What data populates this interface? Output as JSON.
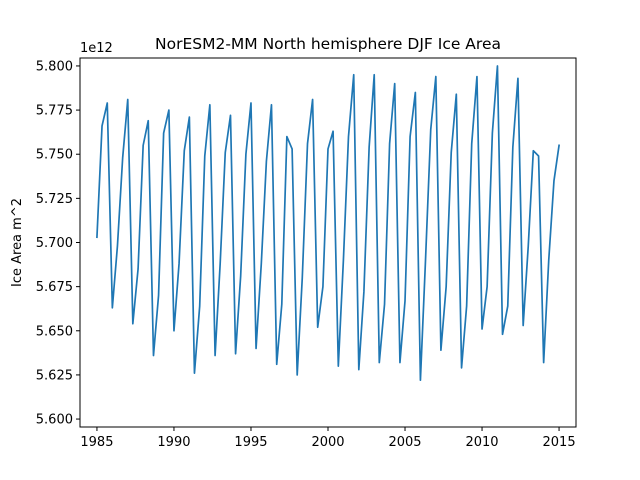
{
  "chart_data": {
    "type": "line",
    "title": "NorESM2-MM North hemisphere DJF Ice Area",
    "xlabel": "",
    "ylabel": "Ice Area m^2",
    "offset_label": "1e12",
    "xlim": [
      1983.9,
      2016.1
    ],
    "ylim": [
      5.5955,
      5.8045
    ],
    "xticks": [
      1985,
      1990,
      1995,
      2000,
      2005,
      2010,
      2015
    ],
    "xtick_labels": [
      "1985",
      "1990",
      "1995",
      "2000",
      "2005",
      "2010",
      "2015"
    ],
    "yticks": [
      5.6,
      5.625,
      5.65,
      5.675,
      5.7,
      5.725,
      5.75,
      5.775,
      5.8
    ],
    "ytick_labels": [
      "5.600",
      "5.625",
      "5.650",
      "5.675",
      "5.700",
      "5.725",
      "5.750",
      "5.775",
      "5.800"
    ],
    "grid": false,
    "series": [
      {
        "color": "#1f77b4",
        "x": [
          1985.0,
          1985.33,
          1985.67,
          1986.0,
          1986.33,
          1986.67,
          1987.0,
          1987.33,
          1987.67,
          1988.0,
          1988.33,
          1988.67,
          1989.0,
          1989.33,
          1989.67,
          1990.0,
          1990.33,
          1990.67,
          1991.0,
          1991.33,
          1991.67,
          1992.0,
          1992.33,
          1992.67,
          1993.0,
          1993.33,
          1993.67,
          1994.0,
          1994.33,
          1994.67,
          1995.0,
          1995.33,
          1995.67,
          1996.0,
          1996.33,
          1996.67,
          1997.0,
          1997.33,
          1997.67,
          1998.0,
          1998.33,
          1998.67,
          1999.0,
          1999.33,
          1999.67,
          2000.0,
          2000.33,
          2000.67,
          2001.0,
          2001.33,
          2001.67,
          2002.0,
          2002.33,
          2002.67,
          2003.0,
          2003.33,
          2003.67,
          2004.0,
          2004.33,
          2004.67,
          2005.0,
          2005.33,
          2005.67,
          2006.0,
          2006.33,
          2006.67,
          2007.0,
          2007.33,
          2007.67,
          2008.0,
          2008.33,
          2008.67,
          2009.0,
          2009.33,
          2009.67,
          2010.0,
          2010.33,
          2010.67,
          2011.0,
          2011.33,
          2011.67,
          2012.0,
          2012.33,
          2012.67,
          2013.0,
          2013.33,
          2013.67,
          2014.0,
          2014.33,
          2014.67,
          2015.0
        ],
        "y": [
          5.703,
          5.766,
          5.779,
          5.663,
          5.698,
          5.748,
          5.781,
          5.654,
          5.685,
          5.755,
          5.769,
          5.636,
          5.67,
          5.762,
          5.775,
          5.65,
          5.688,
          5.752,
          5.771,
          5.626,
          5.664,
          5.749,
          5.778,
          5.636,
          5.688,
          5.751,
          5.772,
          5.637,
          5.681,
          5.75,
          5.779,
          5.64,
          5.688,
          5.746,
          5.778,
          5.631,
          5.665,
          5.76,
          5.753,
          5.625,
          5.68,
          5.756,
          5.781,
          5.652,
          5.675,
          5.753,
          5.763,
          5.63,
          5.69,
          5.76,
          5.795,
          5.628,
          5.672,
          5.754,
          5.795,
          5.632,
          5.665,
          5.756,
          5.79,
          5.632,
          5.667,
          5.76,
          5.785,
          5.622,
          5.69,
          5.764,
          5.794,
          5.639,
          5.675,
          5.751,
          5.784,
          5.629,
          5.664,
          5.756,
          5.794,
          5.651,
          5.675,
          5.762,
          5.8,
          5.648,
          5.664,
          5.754,
          5.793,
          5.653,
          5.698,
          5.752,
          5.749,
          5.632,
          5.69,
          5.735,
          5.755
        ]
      }
    ]
  }
}
